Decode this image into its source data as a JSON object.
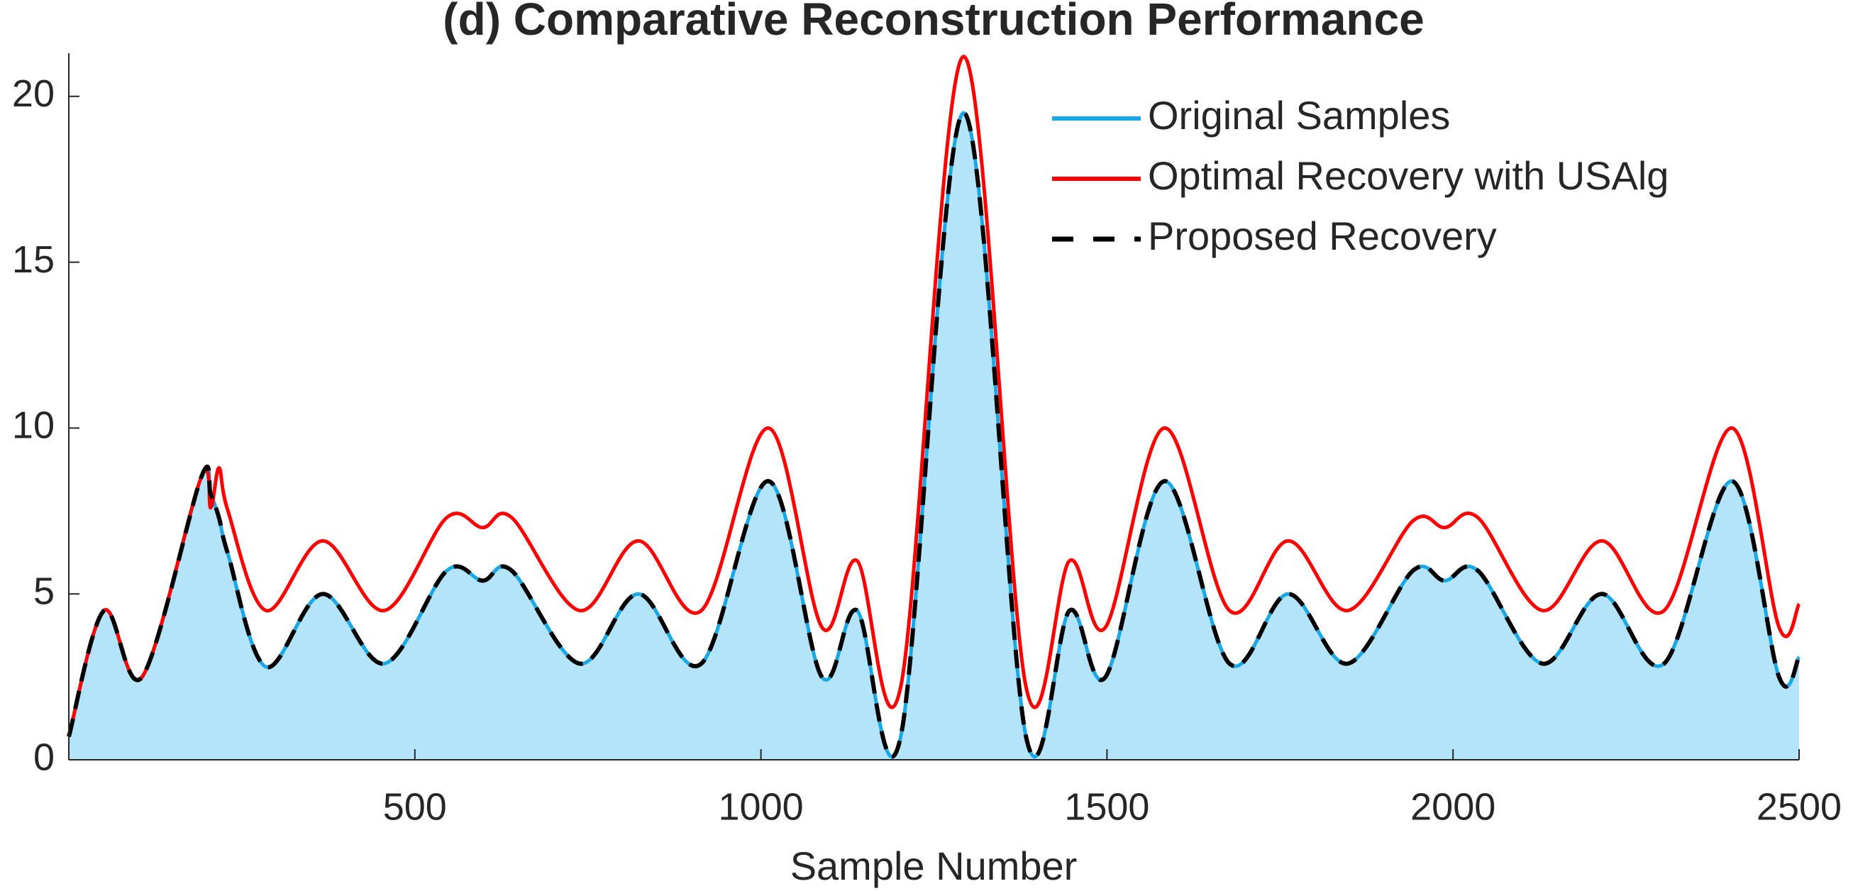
{
  "chart_data": {
    "type": "line",
    "title": "(d) Comparative Reconstruction Performance",
    "xlabel": "Sample Number",
    "x": [
      0,
      51,
      106,
      191,
      205,
      217,
      230,
      285,
      367,
      456,
      546,
      598,
      640,
      738,
      823,
      914,
      1011,
      1088,
      1139,
      1202,
      1293,
      1383,
      1446,
      1498,
      1583,
      1677,
      1762,
      1848,
      1942,
      1988,
      2036,
      2129,
      2215,
      2305,
      2403,
      2471,
      2500
    ],
    "series": [
      {
        "name": "Original Samples",
        "color": "#1aa7e6",
        "fill": "#b3e4f9",
        "style": "solid",
        "values": [
          0.7,
          4.5,
          2.5,
          8.5,
          8.0,
          7.3,
          6.2,
          2.8,
          5.0,
          2.9,
          5.7,
          5.4,
          5.7,
          2.9,
          5.0,
          2.9,
          8.4,
          2.5,
          4.5,
          0.7,
          19.5,
          0.7,
          4.5,
          2.5,
          8.4,
          2.9,
          5.0,
          2.9,
          5.7,
          5.4,
          5.7,
          2.9,
          5.0,
          2.9,
          8.4,
          2.5,
          3.1
        ]
      },
      {
        "name": "Optimal Recovery with USAlg",
        "color": "#ff0000",
        "style": "solid",
        "values": [
          0.7,
          4.5,
          2.5,
          8.5,
          7.6,
          8.8,
          7.5,
          4.5,
          6.6,
          4.5,
          7.3,
          7.0,
          7.3,
          4.5,
          6.6,
          4.5,
          10.0,
          4.0,
          6.0,
          2.2,
          21.2,
          2.2,
          6.0,
          4.0,
          10.0,
          4.5,
          6.6,
          4.5,
          7.2,
          7.0,
          7.3,
          4.5,
          6.6,
          4.5,
          10.0,
          4.0,
          4.7
        ]
      },
      {
        "name": "Proposed Recovery",
        "color": "#000000",
        "style": "dashed",
        "values": [
          0.7,
          4.5,
          2.5,
          8.5,
          8.0,
          7.3,
          6.2,
          2.8,
          5.0,
          2.9,
          5.7,
          5.4,
          5.7,
          2.9,
          5.0,
          2.9,
          8.4,
          2.5,
          4.5,
          0.7,
          19.5,
          0.7,
          4.5,
          2.5,
          8.4,
          2.9,
          5.0,
          2.9,
          5.7,
          5.4,
          5.7,
          2.9,
          5.0,
          2.9,
          8.4,
          2.5,
          3.1
        ]
      }
    ],
    "xlim": [
      0,
      2500
    ],
    "ylim": [
      0,
      21.3
    ],
    "xticks": [
      500,
      1000,
      1500,
      2000,
      2500
    ],
    "yticks": [
      0,
      5,
      10,
      15,
      20
    ],
    "legend": "upper-right"
  }
}
